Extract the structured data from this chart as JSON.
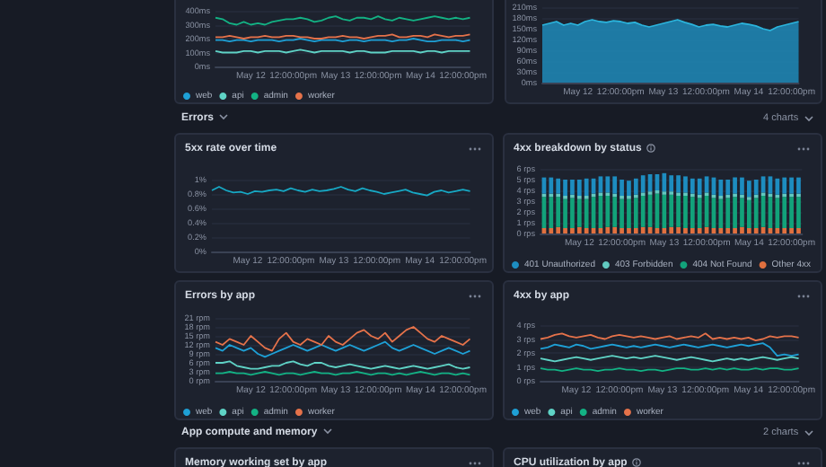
{
  "chart_data": [
    {
      "type": "line",
      "x": [
        "--05-11T14:00",
        "--05-11T16:00",
        "--05-11T18:00",
        "--05-11T20:00",
        "--05-11T22:00",
        "--05-12T00:00",
        "--05-12T02:00",
        "--05-12T04:00",
        "--05-12T06:00",
        "--05-12T08:00",
        "--05-12T10:00",
        "--05-12T12:00",
        "--05-12T14:00",
        "--05-12T16:00",
        "--05-12T18:00",
        "--05-12T20:00",
        "--05-12T22:00",
        "--05-13T00:00",
        "--05-13T02:00",
        "--05-13T04:00",
        "--05-13T06:00",
        "--05-13T08:00",
        "--05-13T10:00",
        "--05-13T12:00",
        "--05-13T14:00",
        "--05-13T16:00",
        "--05-13T18:00",
        "--05-13T20:00",
        "--05-13T22:00",
        "--05-14T00:00",
        "--05-14T02:00",
        "--05-14T04:00",
        "--05-14T06:00",
        "--05-14T08:00",
        "--05-14T10:00",
        "--05-14T12:00",
        "--05-14T14:00"
      ],
      "series": [
        {
          "name": "web",
          "color": "#1ea0d6",
          "values": [
            190,
            190,
            180,
            190,
            190,
            180,
            190,
            190,
            190,
            180,
            190,
            190,
            200,
            190,
            180,
            190,
            190,
            190,
            180,
            190,
            190,
            180,
            190,
            190,
            190,
            180,
            190,
            190,
            200,
            190,
            180,
            180,
            190,
            190,
            190,
            180,
            190
          ]
        },
        {
          "name": "api",
          "color": "#5fd3c6",
          "values": [
            110,
            100,
            100,
            100,
            110,
            110,
            100,
            110,
            110,
            110,
            100,
            110,
            120,
            110,
            100,
            110,
            110,
            110,
            110,
            100,
            110,
            110,
            100,
            100,
            100,
            110,
            110,
            110,
            110,
            100,
            110,
            110,
            100,
            110,
            110,
            110,
            110
          ]
        },
        {
          "name": "admin",
          "color": "#13b284",
          "values": [
            350,
            340,
            310,
            300,
            320,
            300,
            310,
            300,
            320,
            330,
            340,
            340,
            350,
            340,
            320,
            330,
            350,
            360,
            340,
            330,
            350,
            350,
            340,
            360,
            340,
            330,
            350,
            340,
            330,
            340,
            350,
            360,
            350,
            340,
            350,
            340,
            350
          ]
        },
        {
          "name": "worker",
          "color": "#e5724a",
          "values": [
            210,
            210,
            220,
            210,
            200,
            210,
            210,
            220,
            210,
            210,
            220,
            220,
            210,
            210,
            200,
            200,
            210,
            210,
            220,
            210,
            210,
            200,
            210,
            220,
            220,
            230,
            210,
            210,
            220,
            220,
            210,
            230,
            220,
            210,
            220,
            220,
            230
          ]
        }
      ],
      "xlim": [
        "--05-11T14:00",
        "--05-14T14:00"
      ],
      "xticks": [
        {
          "value": "--05-12T00:00",
          "label": "May 12"
        },
        {
          "value": "--05-12T12:00",
          "label": "12:00:00pm"
        },
        {
          "value": "--05-13T00:00",
          "label": "May 13"
        },
        {
          "value": "--05-13T12:00",
          "label": "12:00:00pm"
        },
        {
          "value": "--05-14T00:00",
          "label": "May 14"
        },
        {
          "value": "--05-14T12:00",
          "label": "12:00:00pm"
        }
      ],
      "ylim": [
        0,
        400
      ],
      "yticks": [
        {
          "value": 0,
          "label": "0ms"
        },
        {
          "value": 100,
          "label": "100ms"
        },
        {
          "value": 200,
          "label": "200ms"
        },
        {
          "value": 300,
          "label": "300ms"
        },
        {
          "value": 400,
          "label": "400ms"
        }
      ],
      "grid": "y",
      "legend": "bottom left"
    },
    {
      "type": "area",
      "x": [
        "--05-11T14:00",
        "--05-11T16:00",
        "--05-11T18:00",
        "--05-11T20:00",
        "--05-11T22:00",
        "--05-12T00:00",
        "--05-12T02:00",
        "--05-12T04:00",
        "--05-12T06:00",
        "--05-12T08:00",
        "--05-12T10:00",
        "--05-12T12:00",
        "--05-12T14:00",
        "--05-12T16:00",
        "--05-12T18:00",
        "--05-12T20:00",
        "--05-12T22:00",
        "--05-13T00:00",
        "--05-13T02:00",
        "--05-13T04:00",
        "--05-13T06:00",
        "--05-13T08:00",
        "--05-13T10:00",
        "--05-13T12:00",
        "--05-13T14:00",
        "--05-13T16:00",
        "--05-13T18:00",
        "--05-13T20:00",
        "--05-13T22:00",
        "--05-14T00:00",
        "--05-14T02:00",
        "--05-14T04:00",
        "--05-14T06:00",
        "--05-14T08:00",
        "--05-14T10:00",
        "--05-14T12:00",
        "--05-14T14:00"
      ],
      "values": [
        160,
        165,
        170,
        160,
        165,
        160,
        170,
        175,
        170,
        168,
        172,
        170,
        165,
        168,
        160,
        155,
        160,
        165,
        170,
        175,
        168,
        162,
        155,
        160,
        162,
        158,
        155,
        160,
        165,
        162,
        158,
        150,
        145,
        155,
        160,
        165,
        170
      ],
      "color": "#1f8ab8",
      "xlim": [
        "--05-11T14:00",
        "--05-14T14:00"
      ],
      "xticks": [
        {
          "value": "--05-12T00:00",
          "label": "May 12"
        },
        {
          "value": "--05-12T12:00",
          "label": "12:00:00pm"
        },
        {
          "value": "--05-13T00:00",
          "label": "May 13"
        },
        {
          "value": "--05-13T12:00",
          "label": "12:00:00pm"
        },
        {
          "value": "--05-14T00:00",
          "label": "May 14"
        },
        {
          "value": "--05-14T12:00",
          "label": "12:00:00pm"
        }
      ],
      "ylim": [
        0,
        210
      ],
      "yticks": [
        {
          "value": 0,
          "label": "0ms"
        },
        {
          "value": 30,
          "label": "30ms"
        },
        {
          "value": 60,
          "label": "60ms"
        },
        {
          "value": 90,
          "label": "90ms"
        },
        {
          "value": 120,
          "label": "120ms"
        },
        {
          "value": 150,
          "label": "150ms"
        },
        {
          "value": 180,
          "label": "180ms"
        },
        {
          "value": 210,
          "label": "210ms"
        }
      ],
      "grid": "y"
    },
    {
      "type": "line",
      "title": "5xx rate over time",
      "annotations": [
        "Errors",
        "4 charts"
      ],
      "x": [
        "--05-11T14:00",
        "--05-11T16:00",
        "--05-11T18:00",
        "--05-11T20:00",
        "--05-11T22:00",
        "--05-12T00:00",
        "--05-12T02:00",
        "--05-12T04:00",
        "--05-12T06:00",
        "--05-12T08:00",
        "--05-12T10:00",
        "--05-12T12:00",
        "--05-12T14:00",
        "--05-12T16:00",
        "--05-12T18:00",
        "--05-12T20:00",
        "--05-12T22:00",
        "--05-13T00:00",
        "--05-13T02:00",
        "--05-13T04:00",
        "--05-13T06:00",
        "--05-13T08:00",
        "--05-13T10:00",
        "--05-13T12:00",
        "--05-13T14:00",
        "--05-13T16:00",
        "--05-13T18:00",
        "--05-13T20:00",
        "--05-13T22:00",
        "--05-14T00:00",
        "--05-14T02:00",
        "--05-14T04:00",
        "--05-14T06:00",
        "--05-14T08:00",
        "--05-14T10:00",
        "--05-14T12:00",
        "--05-14T14:00"
      ],
      "values": [
        0.85,
        0.9,
        0.85,
        0.82,
        0.83,
        0.8,
        0.84,
        0.83,
        0.85,
        0.86,
        0.84,
        0.88,
        0.85,
        0.83,
        0.86,
        0.84,
        0.85,
        0.87,
        0.9,
        0.86,
        0.84,
        0.88,
        0.85,
        0.83,
        0.8,
        0.82,
        0.84,
        0.86,
        0.82,
        0.8,
        0.78,
        0.83,
        0.85,
        0.82,
        0.84,
        0.86,
        0.84
      ],
      "color": "#17a8c4",
      "xlim": [
        "--05-11T14:00",
        "--05-14T14:00"
      ],
      "xticks": [
        {
          "value": "--05-12T00:00",
          "label": "May 12"
        },
        {
          "value": "--05-12T12:00",
          "label": "12:00:00pm"
        },
        {
          "value": "--05-13T00:00",
          "label": "May 13"
        },
        {
          "value": "--05-13T12:00",
          "label": "12:00:00pm"
        },
        {
          "value": "--05-14T00:00",
          "label": "May 14"
        },
        {
          "value": "--05-14T12:00",
          "label": "12:00:00pm"
        }
      ],
      "ylim": [
        0,
        1
      ],
      "yticks": [
        {
          "value": 0,
          "label": "0%"
        },
        {
          "value": 0.2,
          "label": "0.2%"
        },
        {
          "value": 0.4,
          "label": "0.4%"
        },
        {
          "value": 0.6,
          "label": "0.6%"
        },
        {
          "value": 0.8,
          "label": "0.8%"
        },
        {
          "value": 1,
          "label": "1%"
        }
      ],
      "grid": "y"
    },
    {
      "type": "bar",
      "title": "4xx breakdown by status",
      "stacked": true,
      "x": [
        "--05-11T14:00",
        "--05-11T16:00",
        "--05-11T18:00",
        "--05-11T20:00",
        "--05-11T22:00",
        "--05-12T00:00",
        "--05-12T02:00",
        "--05-12T04:00",
        "--05-12T06:00",
        "--05-12T08:00",
        "--05-12T10:00",
        "--05-12T12:00",
        "--05-12T14:00",
        "--05-12T16:00",
        "--05-12T18:00",
        "--05-12T20:00",
        "--05-12T22:00",
        "--05-13T00:00",
        "--05-13T02:00",
        "--05-13T04:00",
        "--05-13T06:00",
        "--05-13T08:00",
        "--05-13T10:00",
        "--05-13T12:00",
        "--05-13T14:00",
        "--05-13T16:00",
        "--05-13T18:00",
        "--05-13T20:00",
        "--05-13T22:00",
        "--05-14T00:00",
        "--05-14T02:00",
        "--05-14T04:00",
        "--05-14T06:00",
        "--05-14T08:00",
        "--05-14T10:00",
        "--05-14T12:00",
        "--05-14T14:00"
      ],
      "series": [
        {
          "name": "Other 4xx",
          "color": "#e0703f",
          "values": [
            0.5,
            0.5,
            0.6,
            0.5,
            0.5,
            0.6,
            0.5,
            0.5,
            0.5,
            0.6,
            0.6,
            0.5,
            0.5,
            0.5,
            0.6,
            0.6,
            0.5,
            0.5,
            0.6,
            0.6,
            0.5,
            0.5,
            0.5,
            0.6,
            0.5,
            0.5,
            0.5,
            0.5,
            0.6,
            0.5,
            0.5,
            0.6,
            0.5,
            0.5,
            0.5,
            0.5,
            0.5
          ]
        },
        {
          "name": "404 Not Found",
          "color": "#12a27a",
          "values": [
            2.9,
            2.9,
            2.8,
            2.7,
            2.8,
            2.6,
            2.7,
            2.9,
            3.0,
            2.9,
            2.8,
            2.7,
            2.7,
            2.8,
            2.9,
            3.0,
            3.2,
            3.1,
            3.0,
            2.9,
            3.0,
            2.9,
            2.8,
            2.9,
            2.8,
            2.7,
            2.8,
            2.9,
            2.7,
            2.6,
            2.8,
            2.9,
            2.9,
            2.8,
            2.9,
            2.9,
            2.9
          ]
        },
        {
          "name": "403 Forbidden",
          "color": "#62c9c0",
          "values": [
            0.3,
            0.3,
            0.3,
            0.3,
            0.3,
            0.3,
            0.3,
            0.3,
            0.3,
            0.3,
            0.3,
            0.3,
            0.3,
            0.3,
            0.3,
            0.3,
            0.3,
            0.3,
            0.3,
            0.3,
            0.3,
            0.3,
            0.3,
            0.3,
            0.3,
            0.3,
            0.3,
            0.3,
            0.3,
            0.3,
            0.3,
            0.3,
            0.3,
            0.3,
            0.3,
            0.3,
            0.3
          ]
        },
        {
          "name": "401 Unauthorized",
          "color": "#1d8dc0",
          "values": [
            1.5,
            1.5,
            1.4,
            1.5,
            1.4,
            1.5,
            1.6,
            1.4,
            1.5,
            1.5,
            1.6,
            1.5,
            1.4,
            1.5,
            1.6,
            1.6,
            1.5,
            1.7,
            1.5,
            1.6,
            1.5,
            1.4,
            1.5,
            1.5,
            1.6,
            1.5,
            1.4,
            1.5,
            1.6,
            1.5,
            1.4,
            1.5,
            1.6,
            1.5,
            1.5,
            1.5,
            1.5
          ]
        }
      ],
      "xlim": [
        "--05-11T13:00",
        "--05-14T15:00"
      ],
      "xticks": [
        {
          "value": "--05-12T00:00",
          "label": "May 12"
        },
        {
          "value": "--05-12T12:00",
          "label": "12:00:00pm"
        },
        {
          "value": "--05-13T00:00",
          "label": "May 13"
        },
        {
          "value": "--05-13T12:00",
          "label": "12:00:00pm"
        },
        {
          "value": "--05-14T00:00",
          "label": "May 14"
        },
        {
          "value": "--05-14T12:00",
          "label": "12:00:00pm"
        }
      ],
      "ylim": [
        0,
        6
      ],
      "yticks": [
        {
          "value": 0,
          "label": "0 rps"
        },
        {
          "value": 1,
          "label": "1 rps"
        },
        {
          "value": 2,
          "label": "2 rps"
        },
        {
          "value": 3,
          "label": "3 rps"
        },
        {
          "value": 4,
          "label": "4 rps"
        },
        {
          "value": 5,
          "label": "5 rps"
        },
        {
          "value": 6,
          "label": "6 rps"
        }
      ],
      "grid": "y",
      "legend": "bottom left"
    },
    {
      "type": "line",
      "title": "Errors by app",
      "x": [
        "--05-11T14:00",
        "--05-11T16:00",
        "--05-11T18:00",
        "--05-11T20:00",
        "--05-11T22:00",
        "--05-12T00:00",
        "--05-12T02:00",
        "--05-12T04:00",
        "--05-12T06:00",
        "--05-12T08:00",
        "--05-12T10:00",
        "--05-12T12:00",
        "--05-12T14:00",
        "--05-12T16:00",
        "--05-12T18:00",
        "--05-12T20:00",
        "--05-12T22:00",
        "--05-13T00:00",
        "--05-13T02:00",
        "--05-13T04:00",
        "--05-13T06:00",
        "--05-13T08:00",
        "--05-13T10:00",
        "--05-13T12:00",
        "--05-13T14:00",
        "--05-13T16:00",
        "--05-13T18:00",
        "--05-13T20:00",
        "--05-13T22:00",
        "--05-14T00:00",
        "--05-14T02:00",
        "--05-14T04:00",
        "--05-14T06:00",
        "--05-14T08:00",
        "--05-14T10:00",
        "--05-14T12:00",
        "--05-14T14:00"
      ],
      "series": [
        {
          "name": "web",
          "color": "#1ea0d6",
          "values": [
            11,
            10,
            12,
            11,
            10,
            11,
            9,
            8,
            9,
            10,
            11,
            12,
            11,
            10,
            11,
            12,
            11,
            10,
            11,
            12,
            11,
            10,
            11,
            12,
            13,
            11,
            10,
            11,
            12,
            11,
            10,
            9,
            10,
            11,
            10,
            9,
            10
          ]
        },
        {
          "name": "api",
          "color": "#5fd3c6",
          "values": [
            6,
            6,
            6.5,
            5,
            4.5,
            4,
            4,
            4.5,
            5,
            5,
            6,
            6.5,
            5.5,
            5,
            6,
            6,
            5,
            4.5,
            5,
            5.5,
            5,
            4.5,
            4,
            4.5,
            5,
            4.5,
            4,
            4.5,
            5,
            4.5,
            4,
            4.5,
            5,
            5.5,
            4.5,
            4,
            4.5
          ]
        },
        {
          "name": "admin",
          "color": "#13b284",
          "values": [
            2.5,
            2.5,
            3,
            2.5,
            2.5,
            2,
            2.5,
            3,
            2.5,
            2,
            2.5,
            2.5,
            2,
            2.5,
            3,
            2.5,
            2.5,
            2,
            2.5,
            2.5,
            3,
            2.5,
            2,
            2.5,
            2.5,
            2,
            2.5,
            2,
            2.5,
            3,
            2.5,
            2,
            2.5,
            2.5,
            2,
            2.5,
            2
          ]
        },
        {
          "name": "worker",
          "color": "#e5724a",
          "values": [
            13,
            12,
            14,
            13,
            12,
            15,
            13,
            11,
            10,
            14,
            16,
            13,
            12,
            14,
            13,
            12,
            15,
            13,
            12,
            14,
            16,
            17,
            15,
            14,
            16,
            13,
            15,
            17,
            18,
            16,
            14,
            13,
            15,
            14,
            13,
            12,
            14
          ]
        }
      ],
      "xlim": [
        "--05-11T14:00",
        "--05-14T14:00"
      ],
      "xticks": [
        {
          "value": "--05-12T00:00",
          "label": "May 12"
        },
        {
          "value": "--05-12T12:00",
          "label": "12:00:00pm"
        },
        {
          "value": "--05-13T00:00",
          "label": "May 13"
        },
        {
          "value": "--05-13T12:00",
          "label": "12:00:00pm"
        },
        {
          "value": "--05-14T00:00",
          "label": "May 14"
        },
        {
          "value": "--05-14T12:00",
          "label": "12:00:00pm"
        }
      ],
      "ylim": [
        0,
        21
      ],
      "yticks": [
        {
          "value": 0,
          "label": "0 rpm"
        },
        {
          "value": 3,
          "label": "3 rpm"
        },
        {
          "value": 6,
          "label": "6 rpm"
        },
        {
          "value": 9,
          "label": "9 rpm"
        },
        {
          "value": 12,
          "label": "12 rpm"
        },
        {
          "value": 15,
          "label": "15 rpm"
        },
        {
          "value": 18,
          "label": "18 rpm"
        },
        {
          "value": 21,
          "label": "21 rpm"
        }
      ],
      "grid": "y",
      "legend": "bottom left"
    },
    {
      "type": "line",
      "title": "4xx by app",
      "x": [
        "--05-11T14:00",
        "--05-11T16:00",
        "--05-11T18:00",
        "--05-11T20:00",
        "--05-11T22:00",
        "--05-12T00:00",
        "--05-12T02:00",
        "--05-12T04:00",
        "--05-12T06:00",
        "--05-12T08:00",
        "--05-12T10:00",
        "--05-12T12:00",
        "--05-12T14:00",
        "--05-12T16:00",
        "--05-12T18:00",
        "--05-12T20:00",
        "--05-12T22:00",
        "--05-13T00:00",
        "--05-13T02:00",
        "--05-13T04:00",
        "--05-13T06:00",
        "--05-13T08:00",
        "--05-13T10:00",
        "--05-13T12:00",
        "--05-13T14:00",
        "--05-13T16:00",
        "--05-13T18:00",
        "--05-13T20:00",
        "--05-13T22:00",
        "--05-14T00:00",
        "--05-14T02:00",
        "--05-14T04:00",
        "--05-14T06:00",
        "--05-14T08:00",
        "--05-14T10:00",
        "--05-14T12:00",
        "--05-14T14:00"
      ],
      "series": [
        {
          "name": "web",
          "color": "#1ea0d6",
          "values": [
            2.3,
            2.4,
            2.6,
            2.5,
            2.4,
            2.6,
            2.5,
            2.3,
            2.4,
            2.5,
            2.6,
            2.5,
            2.4,
            2.5,
            2.4,
            2.5,
            2.6,
            2.5,
            2.4,
            2.5,
            2.6,
            2.5,
            2.4,
            2.5,
            2.6,
            2.5,
            2.4,
            2.5,
            2.6,
            2.5,
            2.6,
            2.7,
            2.4,
            1.8,
            1.9,
            1.8,
            1.9
          ]
        },
        {
          "name": "api",
          "color": "#5fd3c6",
          "values": [
            1.6,
            1.5,
            1.4,
            1.5,
            1.6,
            1.7,
            1.6,
            1.5,
            1.6,
            1.7,
            1.8,
            1.7,
            1.6,
            1.7,
            1.6,
            1.7,
            1.8,
            1.7,
            1.6,
            1.5,
            1.6,
            1.7,
            1.6,
            1.5,
            1.4,
            1.5,
            1.6,
            1.5,
            1.6,
            1.5,
            1.6,
            1.7,
            1.6,
            1.5,
            1.6,
            1.7,
            1.6
          ]
        },
        {
          "name": "admin",
          "color": "#13b284",
          "values": [
            0.9,
            0.8,
            0.8,
            0.7,
            0.8,
            0.9,
            0.8,
            0.8,
            0.7,
            0.8,
            0.8,
            0.9,
            0.8,
            0.8,
            0.7,
            0.8,
            0.8,
            0.7,
            0.8,
            0.9,
            0.9,
            0.8,
            0.8,
            0.9,
            0.8,
            0.9,
            0.8,
            0.9,
            0.8,
            0.8,
            0.9,
            0.8,
            0.9,
            0.9,
            0.8,
            0.8,
            0.9
          ]
        },
        {
          "name": "worker",
          "color": "#e5724a",
          "values": [
            3.0,
            3.1,
            3.3,
            3.4,
            3.2,
            3.1,
            3.2,
            3.3,
            3.1,
            3.0,
            3.2,
            3.3,
            3.2,
            3.1,
            3.2,
            3.1,
            3.0,
            3.1,
            3.2,
            3.0,
            3.1,
            3.2,
            3.1,
            3.4,
            3.0,
            3.1,
            3.0,
            3.1,
            3.0,
            3.1,
            2.9,
            3.0,
            3.2,
            3.1,
            3.2,
            3.2,
            3.1
          ]
        }
      ],
      "xlim": [
        "--05-11T14:00",
        "--05-14T14:00"
      ],
      "xticks": [
        {
          "value": "--05-12T00:00",
          "label": "May 12"
        },
        {
          "value": "--05-12T12:00",
          "label": "12:00:00pm"
        },
        {
          "value": "--05-13T00:00",
          "label": "May 13"
        },
        {
          "value": "--05-13T12:00",
          "label": "12:00:00pm"
        },
        {
          "value": "--05-14T00:00",
          "label": "May 14"
        },
        {
          "value": "--05-14T12:00",
          "label": "12:00:00pm"
        }
      ],
      "ylim": [
        0,
        4
      ],
      "yticks": [
        {
          "value": 0,
          "label": "0 rps"
        },
        {
          "value": 1,
          "label": "1 rps"
        },
        {
          "value": 2,
          "label": "2 rps"
        },
        {
          "value": 3,
          "label": "3 rps"
        },
        {
          "value": 4,
          "label": "4 rps"
        }
      ],
      "grid": "y",
      "legend": "bottom left"
    },
    {
      "type": "other",
      "title": "Memory working set by app",
      "annotations": [
        "App compute and memory",
        "2 charts"
      ]
    },
    {
      "type": "other",
      "title": "CPU utilization by app"
    }
  ]
}
